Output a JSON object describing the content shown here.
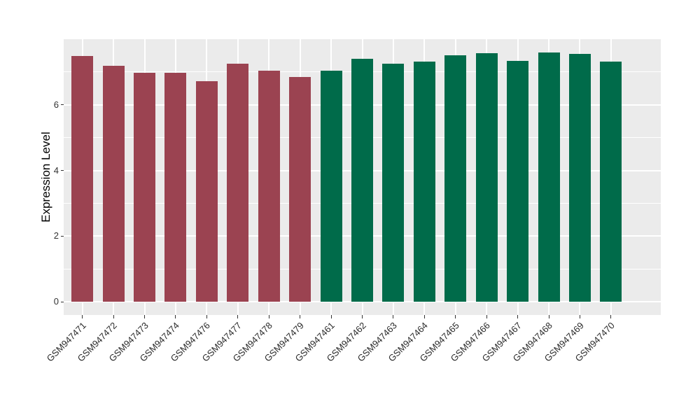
{
  "page": {
    "background": "#FFFFFF"
  },
  "chart_data": {
    "type": "bar",
    "title": "",
    "xlabel": "",
    "ylabel": "Expression Level",
    "legend": "none",
    "grid": true,
    "panel_bg": "#EBEBEB",
    "grid_color": "#FFFFFF",
    "axis_text_color": "#333333",
    "ylim": [
      -0.4,
      8.0
    ],
    "yticks": [
      0,
      2,
      4,
      6
    ],
    "minor_yticks": [
      1,
      3,
      5,
      7
    ],
    "categories": [
      "GSM947471",
      "GSM947472",
      "GSM947473",
      "GSM947474",
      "GSM947476",
      "GSM947477",
      "GSM947478",
      "GSM947479",
      "GSM947461",
      "GSM947462",
      "GSM947463",
      "GSM947464",
      "GSM947465",
      "GSM947466",
      "GSM947467",
      "GSM947468",
      "GSM947469",
      "GSM947470"
    ],
    "values": [
      7.49,
      7.18,
      6.97,
      6.98,
      6.73,
      7.26,
      7.05,
      6.85,
      7.04,
      7.4,
      7.26,
      7.32,
      7.51,
      7.57,
      7.33,
      7.6,
      7.56,
      7.31
    ],
    "colors": [
      "#9B4351",
      "#9B4351",
      "#9B4351",
      "#9B4351",
      "#9B4351",
      "#9B4351",
      "#9B4351",
      "#9B4351",
      "#006B4A",
      "#006B4A",
      "#006B4A",
      "#006B4A",
      "#006B4A",
      "#006B4A",
      "#006B4A",
      "#006B4A",
      "#006B4A",
      "#006B4A"
    ],
    "group_colors": {
      "left_group": "#9B4351",
      "right_group": "#006B4A"
    },
    "bar_width_ratio": 0.7
  }
}
